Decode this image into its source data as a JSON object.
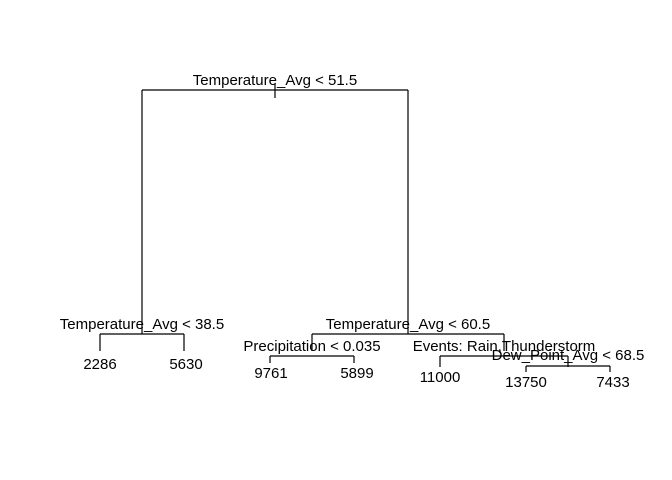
{
  "tree": {
    "root_split": "Temperature_Avg < 51.5",
    "left_split": "Temperature_Avg < 38.5",
    "right_split": "Temperature_Avg < 60.5",
    "precip_split": "Precipitation < 0.035",
    "events_split": "Events: Rain,Thunderstorm",
    "dew_split": "Dew_Point_Avg < 68.5",
    "leaves": {
      "leaf_2286": "2286",
      "leaf_5630": "5630",
      "leaf_9761": "9761",
      "leaf_5899": "5899",
      "leaf_11000": "11000",
      "leaf_13750": "13750",
      "leaf_7433": "7433"
    }
  }
}
